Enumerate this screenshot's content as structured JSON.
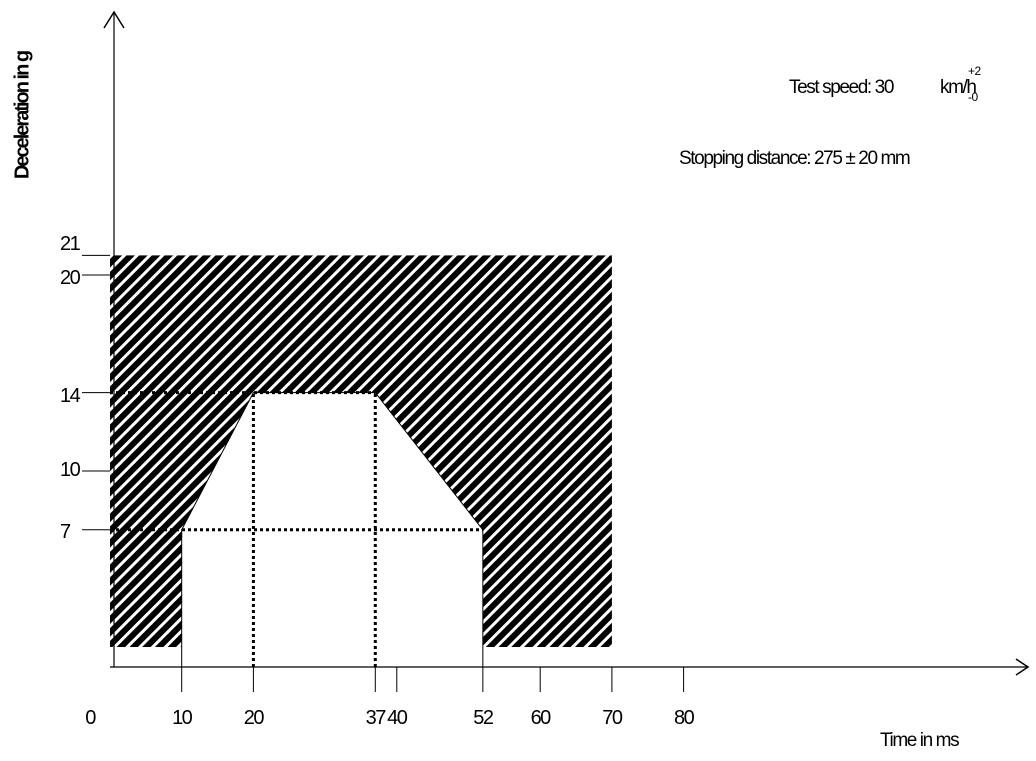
{
  "chart_data": {
    "type": "area",
    "ylabel": "Deceleration in g",
    "xlabel": "Time in ms",
    "x_ticks": [
      0,
      10,
      20,
      37,
      40,
      52,
      60,
      70,
      80
    ],
    "y_ticks": [
      7,
      10,
      14,
      20,
      21
    ],
    "xlim": [
      0,
      80
    ],
    "ylim": [
      0,
      21
    ],
    "outer_corridor": {
      "x": [
        0,
        70
      ],
      "y": [
        0,
        21
      ]
    },
    "inner_corridor": [
      [
        10,
        0
      ],
      [
        10,
        7
      ],
      [
        20,
        14
      ],
      [
        37,
        14
      ],
      [
        52,
        7
      ],
      [
        52,
        0
      ]
    ],
    "reference_lines": [
      {
        "axis": "y",
        "value": 14,
        "from": 0,
        "to": 37
      },
      {
        "axis": "y",
        "value": 7,
        "from": 0,
        "to": 52
      },
      {
        "axis": "x",
        "value": 20,
        "from": 0,
        "to": 14
      },
      {
        "axis": "x",
        "value": 37,
        "from": 0,
        "to": 14
      }
    ],
    "grid": false
  },
  "annotations": {
    "test_speed_text": "Test speed: 30",
    "test_speed_unit": "km/h",
    "test_speed_tol_upper": "+2",
    "test_speed_tol_lower": "-0",
    "stopping_distance": "Stopping distance: 275 ± 20 mm"
  },
  "colors": {
    "hatch": "#000000",
    "background": "#ffffff",
    "axis": "#000000"
  }
}
